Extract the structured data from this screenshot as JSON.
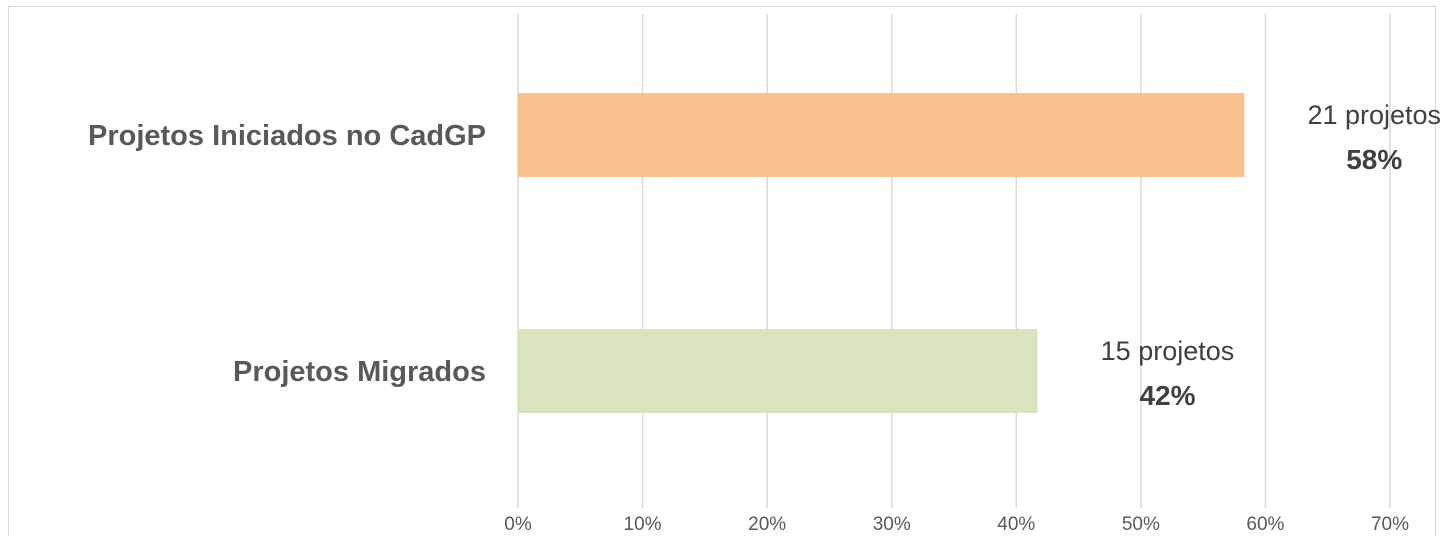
{
  "chart_data": {
    "type": "bar",
    "orientation": "horizontal",
    "categories": [
      "Projetos Iniciados no CadGP",
      "Projetos Migrados"
    ],
    "values": [
      58.3,
      41.7
    ],
    "count_labels": [
      "21 projetos",
      "15 projetos"
    ],
    "percent_labels": [
      "58%",
      "42%"
    ],
    "colors": [
      "#f9c090",
      "#d7e4bd"
    ],
    "xlim": [
      0,
      70
    ],
    "xticks": [
      "0%",
      "10%",
      "20%",
      "30%",
      "40%",
      "50%",
      "60%",
      "70%"
    ],
    "grid": true,
    "legend": "none",
    "title": "",
    "xlabel": "",
    "ylabel": ""
  }
}
